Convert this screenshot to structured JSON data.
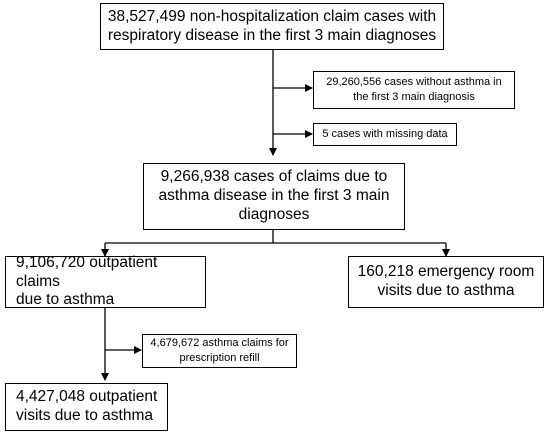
{
  "boxes": {
    "total_claims": "38,527,499 non-hospitalization claim cases with\nrespiratory disease in the first 3 main diagnoses",
    "without_asthma": "29,260,556 cases without asthma in\nthe first 3 main diagnosis",
    "missing_data": "5 cases with missing data",
    "asthma_claims": "9,266,938 cases of claims due to\nasthma disease in the first 3 main\ndiagnoses",
    "outpatient_claims": "9,106,720 outpatient claims\ndue to asthma",
    "er_visits": "160,218 emergency room\nvisits due to asthma",
    "prescription_refill": "4,679,672 asthma claims for\nprescription refill",
    "outpatient_visits": "4,427,048 outpatient\nvisits due to asthma"
  }
}
